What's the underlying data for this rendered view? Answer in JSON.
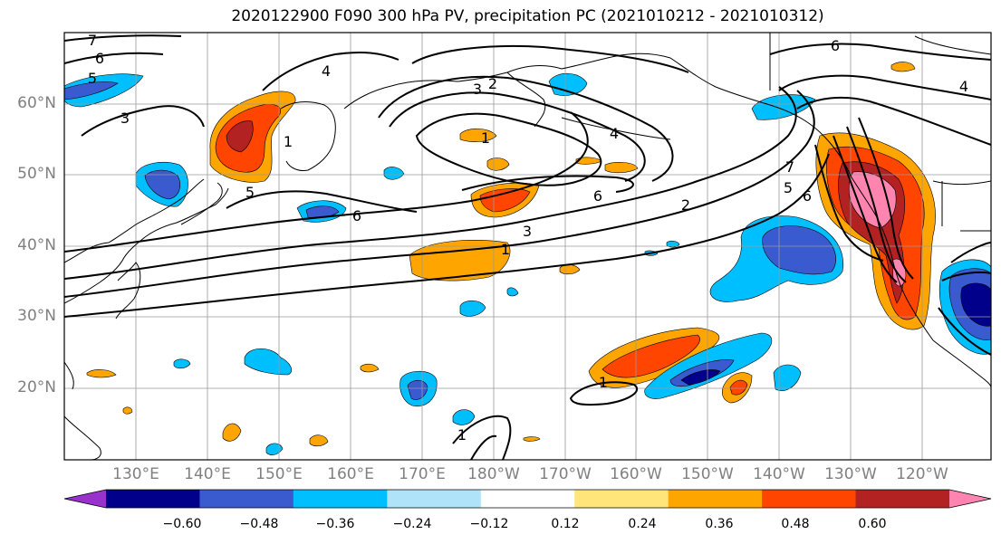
{
  "title": "2020122900 F090 300 hPa PV, precipitation PC (2021010212 - 2021010312)",
  "lat_labels": [
    "60°N",
    "50°N",
    "40°N",
    "30°N",
    "20°N"
  ],
  "lon_labels": [
    "130°E",
    "140°E",
    "150°E",
    "160°E",
    "170°E",
    "180°W",
    "170°W",
    "160°W",
    "150°W",
    "140°W",
    "130°W",
    "120°W"
  ],
  "colorbar": {
    "ticks": [
      "−0.60",
      "−0.48",
      "−0.36",
      "−0.24",
      "−0.12",
      "0.12",
      "0.24",
      "0.36",
      "0.48",
      "0.60"
    ],
    "colors": [
      "#9932cc",
      "#00008b",
      "#3a5bcf",
      "#00bfff",
      "#aee3fa",
      "#ffffff",
      "#ffe57a",
      "#ffa500",
      "#ff4500",
      "#b22222",
      "#ff85b0"
    ]
  },
  "contour_labels": [
    "7",
    "6",
    "5",
    "3",
    "4",
    "2",
    "3",
    "1",
    "4",
    "1",
    "6",
    "5",
    "6",
    "3",
    "2",
    "1",
    "1",
    "6",
    "4",
    "7",
    "5",
    "6",
    "1"
  ]
}
